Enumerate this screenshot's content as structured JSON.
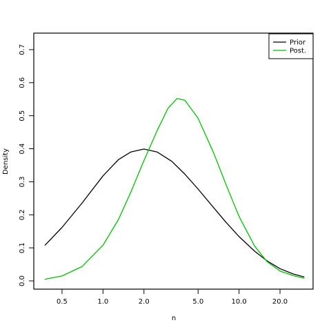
{
  "chart_data": {
    "type": "line",
    "title": "",
    "xlabel": "n",
    "ylabel": "Density",
    "x_scale": "log",
    "xlim": [
      0.31,
      35
    ],
    "ylim": [
      -0.025,
      0.75
    ],
    "x_ticks": [
      0.5,
      1.0,
      2.0,
      5.0,
      10.0,
      20.0
    ],
    "x_tick_labels": [
      "0.5",
      "1.0",
      "2.0",
      "5.0",
      "10.0",
      "20.0"
    ],
    "y_ticks": [
      0.0,
      0.1,
      0.2,
      0.3,
      0.4,
      0.5,
      0.6,
      0.7
    ],
    "y_tick_labels": [
      "0.0",
      "0.1",
      "0.2",
      "0.3",
      "0.4",
      "0.5",
      "0.6",
      "0.7"
    ],
    "grid": false,
    "legend_position": "top-right",
    "series": [
      {
        "name": "Prior",
        "color": "#000000",
        "x": [
          0.375,
          0.5,
          0.7,
          1.0,
          1.3,
          1.6,
          2.0,
          2.5,
          3.2,
          4.0,
          5.0,
          6.5,
          8.0,
          10.0,
          13.0,
          16.0,
          20.0,
          25.0,
          30.0
        ],
        "y": [
          0.108,
          0.162,
          0.235,
          0.318,
          0.367,
          0.39,
          0.399,
          0.39,
          0.362,
          0.323,
          0.278,
          0.222,
          0.178,
          0.134,
          0.09,
          0.061,
          0.037,
          0.021,
          0.012
        ]
      },
      {
        "name": "Post.",
        "color": "#00c000",
        "x": [
          0.375,
          0.5,
          0.7,
          1.0,
          1.3,
          1.6,
          2.0,
          2.5,
          3.0,
          3.5,
          4.0,
          5.0,
          6.5,
          8.0,
          10.0,
          13.0,
          16.0,
          20.0,
          25.0,
          30.0
        ],
        "y": [
          0.005,
          0.015,
          0.043,
          0.108,
          0.186,
          0.268,
          0.364,
          0.455,
          0.522,
          0.552,
          0.547,
          0.492,
          0.388,
          0.293,
          0.195,
          0.106,
          0.059,
          0.03,
          0.016,
          0.008
        ]
      }
    ]
  }
}
